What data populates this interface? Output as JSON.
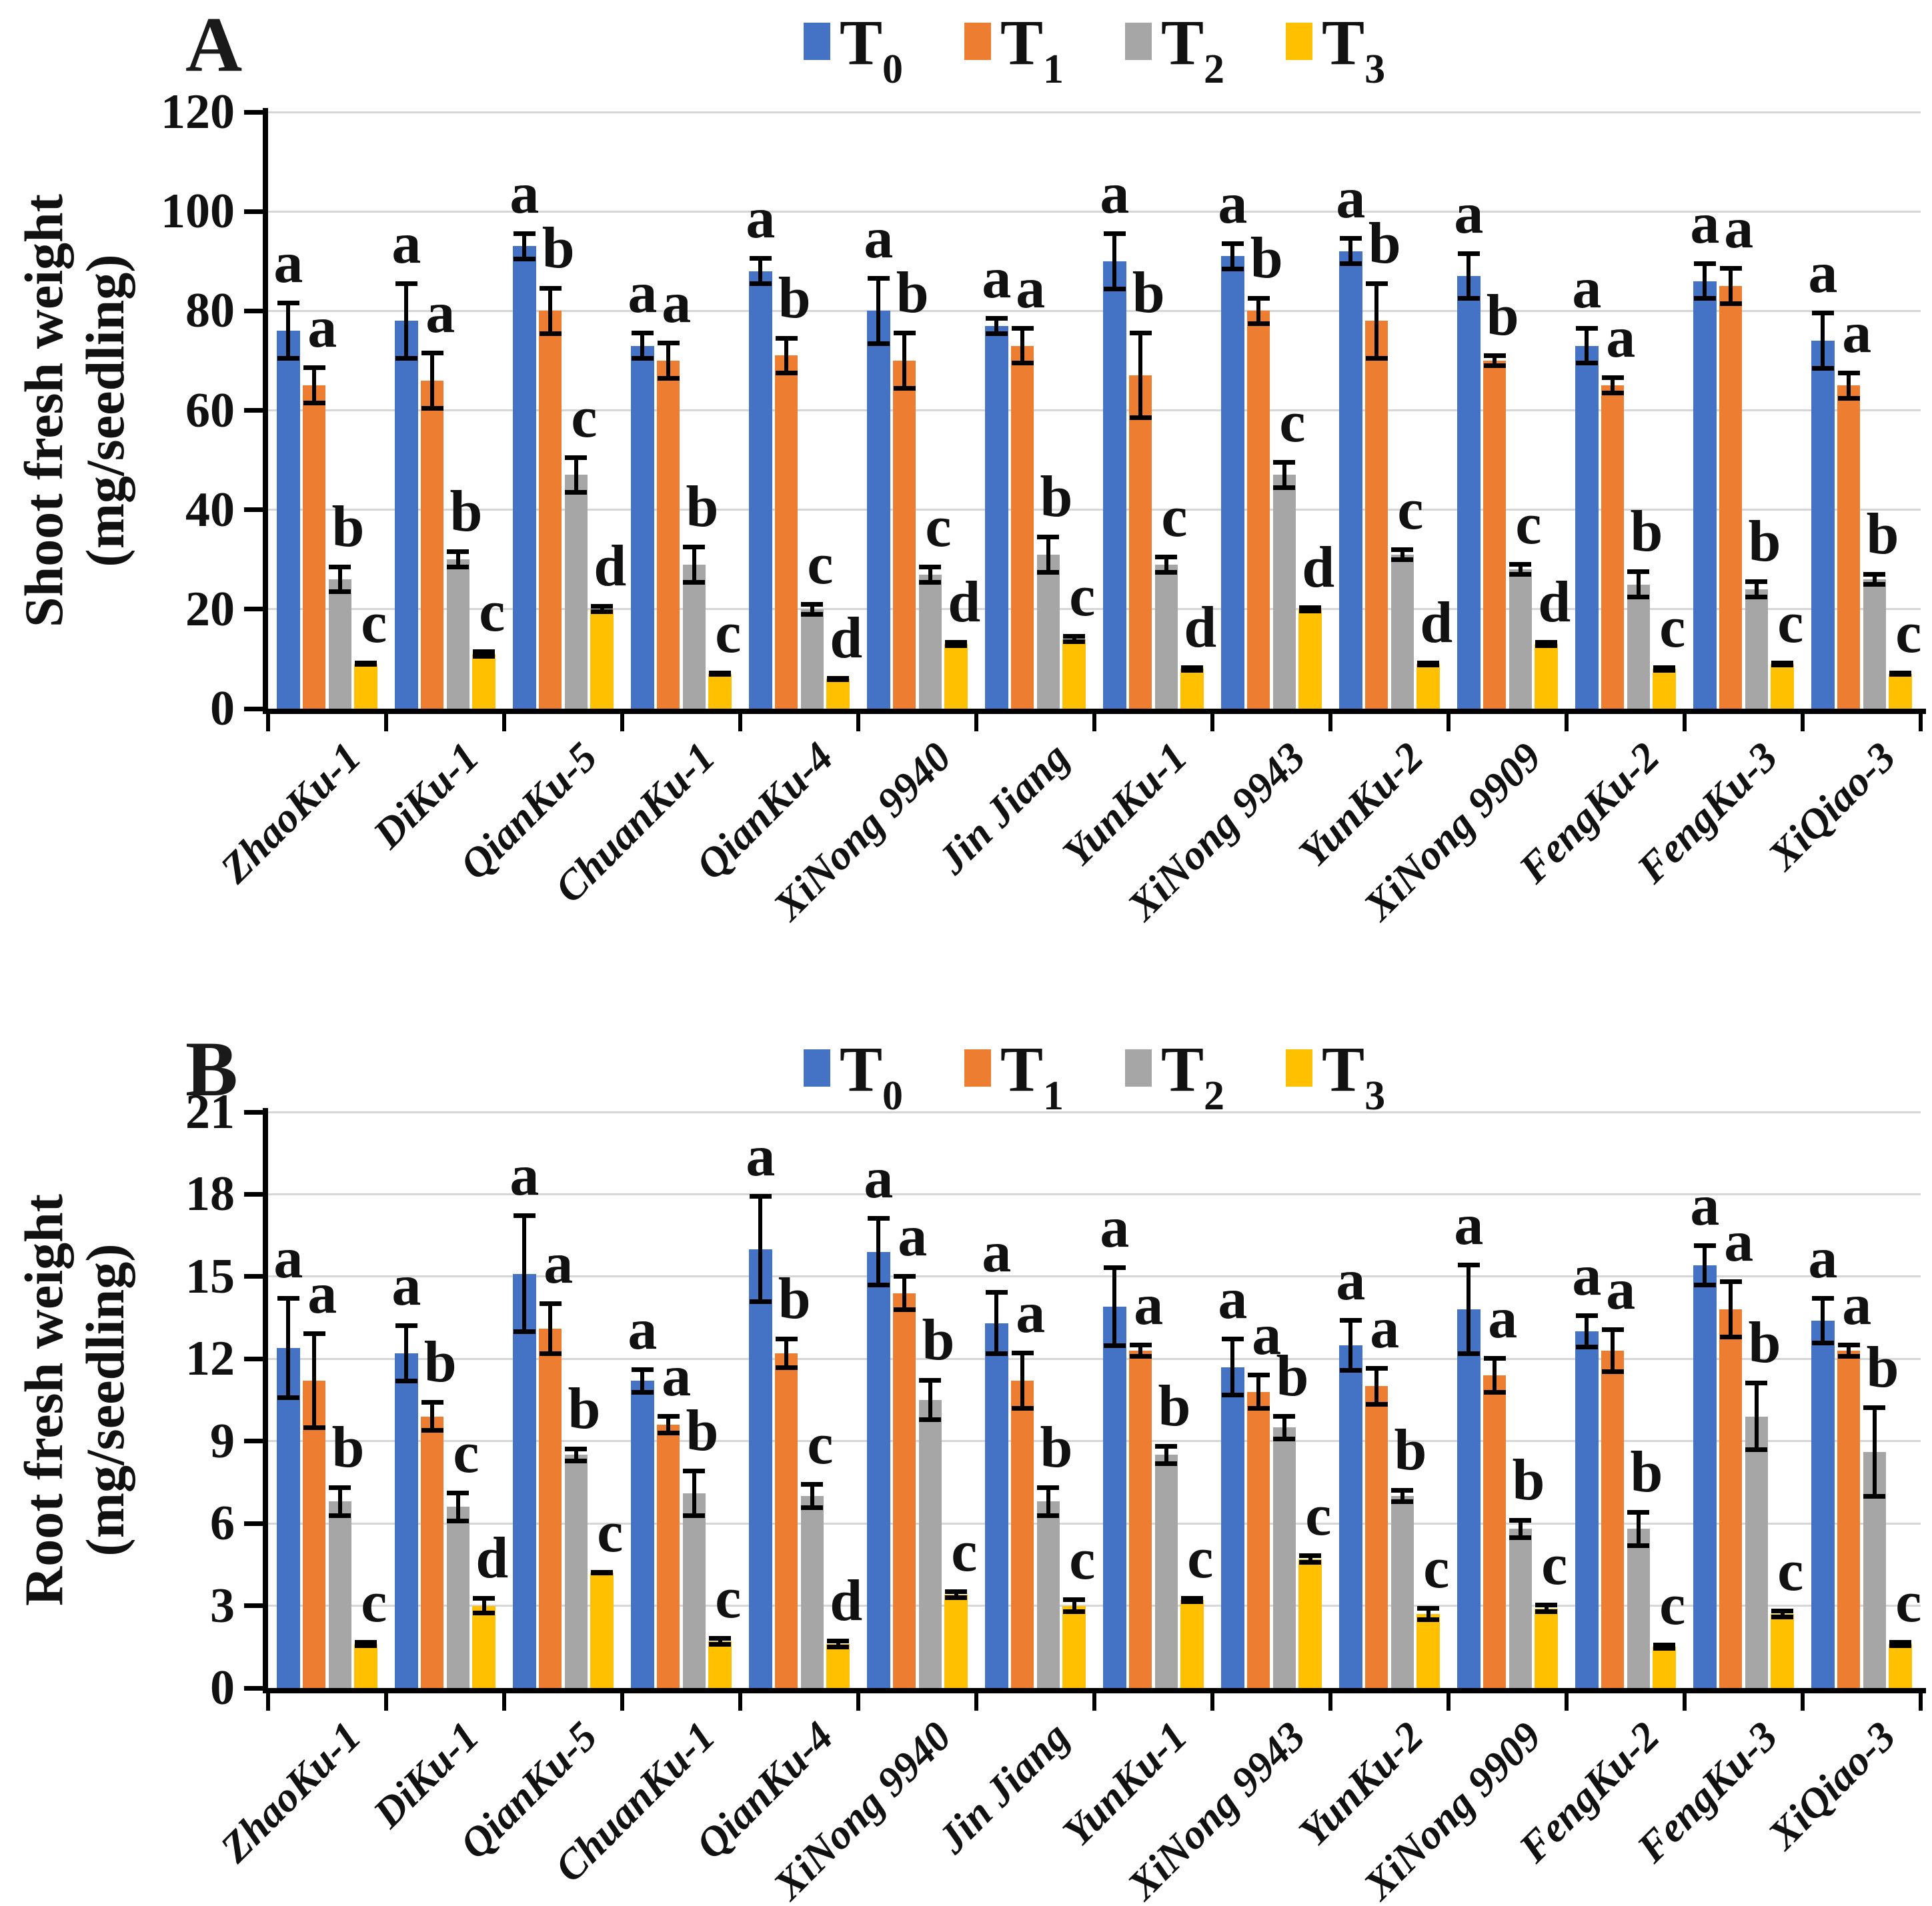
{
  "figure_title": "",
  "chart_data": [
    {
      "type": "bar",
      "panel_label": "A",
      "ylabel_line1": "Shoot fresh weight",
      "ylabel_line2": "(mg/seedling)",
      "xlabel": "",
      "ylim": [
        0,
        120
      ],
      "y_ticks": [
        0,
        20,
        40,
        60,
        80,
        100,
        120
      ],
      "grid": true,
      "legend_position": "top-center",
      "error_bars": true,
      "categories": [
        "ZhaoKu-1",
        "DiKu-1",
        "QianKu-5",
        "ChuanKu-1",
        "QianKu-4",
        "XiNong 9940",
        "Jin Jiang",
        "YunKu-1",
        "XiNong 9943",
        "YunKu-2",
        "XiNong 9909",
        "FengKu-2",
        "FengKu-3",
        "XiQiao-3"
      ],
      "legend": [
        {
          "name": "T",
          "sub": "0",
          "color": "#4472C4"
        },
        {
          "name": "T",
          "sub": "1",
          "color": "#ED7D31"
        },
        {
          "name": "T",
          "sub": "2",
          "color": "#A6A6A6"
        },
        {
          "name": "T",
          "sub": "3",
          "color": "#FFC000"
        }
      ],
      "series": [
        {
          "name": "T0",
          "color": "#4472C4",
          "values": [
            76,
            78,
            93,
            73,
            88,
            80,
            77,
            90,
            91,
            92,
            87,
            73,
            86,
            74
          ],
          "errors": [
            6,
            8,
            3,
            3,
            3,
            7,
            2,
            6,
            3,
            3,
            5,
            4,
            4,
            6
          ],
          "letters": [
            "a",
            "a",
            "a",
            "a",
            "a",
            "a",
            "a",
            "a",
            "a",
            "a",
            "a",
            "a",
            "a",
            "a"
          ]
        },
        {
          "name": "T1",
          "color": "#ED7D31",
          "values": [
            65,
            66,
            80,
            70,
            71,
            70,
            73,
            67,
            80,
            78,
            70,
            65,
            85,
            65
          ],
          "errors": [
            4,
            6,
            5,
            4,
            4,
            6,
            4,
            9,
            3,
            8,
            1.5,
            2,
            4,
            3
          ],
          "letters": [
            "a",
            "a",
            "b",
            "a",
            "b",
            "b",
            "a",
            "b",
            "b",
            "b",
            "b",
            "a",
            "a",
            "a"
          ]
        },
        {
          "name": "T2",
          "color": "#A6A6A6",
          "values": [
            26,
            30,
            47,
            29,
            20,
            27,
            31,
            29,
            47,
            31,
            28,
            25,
            24,
            26
          ],
          "errors": [
            3,
            2,
            4,
            4,
            1.5,
            2,
            4,
            2,
            3,
            1.5,
            1.5,
            3,
            2,
            1.5
          ],
          "letters": [
            "b",
            "b",
            "c",
            "b",
            "c",
            "c",
            "b",
            "c",
            "c",
            "c",
            "c",
            "b",
            "b",
            "b"
          ]
        },
        {
          "name": "T3",
          "color": "#FFC000",
          "values": [
            9,
            11,
            20,
            7,
            6,
            13,
            14,
            8,
            20,
            9,
            13,
            8,
            9,
            7
          ],
          "errors": [
            0.6,
            1,
            1,
            0.6,
            0.6,
            0.8,
            1,
            0.7,
            0.8,
            0.7,
            0.8,
            0.7,
            0.7,
            0.6
          ],
          "letters": [
            "c",
            "c",
            "d",
            "c",
            "d",
            "d",
            "c",
            "d",
            "d",
            "d",
            "d",
            "c",
            "c",
            "c"
          ]
        }
      ]
    },
    {
      "type": "bar",
      "panel_label": "B",
      "ylabel_line1": "Root fresh weight",
      "ylabel_line2": "(mg/seedling)",
      "xlabel": "",
      "ylim": [
        0,
        21
      ],
      "y_ticks": [
        0,
        3,
        6,
        9,
        12,
        15,
        18,
        21
      ],
      "grid": true,
      "legend_position": "top-center",
      "error_bars": true,
      "categories": [
        "ZhaoKu-1",
        "DiKu-1",
        "QianKu-5",
        "ChuanKu-1",
        "QianKu-4",
        "XiNong 9940",
        "Jin Jiang",
        "YunKu-1",
        "XiNong 9943",
        "YunKu-2",
        "XiNong 9909",
        "FengKu-2",
        "FengKu-3",
        "XiQiao-3"
      ],
      "legend": [
        {
          "name": "T",
          "sub": "0",
          "color": "#4472C4"
        },
        {
          "name": "T",
          "sub": "1",
          "color": "#ED7D31"
        },
        {
          "name": "T",
          "sub": "2",
          "color": "#A6A6A6"
        },
        {
          "name": "T",
          "sub": "3",
          "color": "#FFC000"
        }
      ],
      "series": [
        {
          "name": "T0",
          "color": "#4472C4",
          "values": [
            12.4,
            12.2,
            15.1,
            11.2,
            16.0,
            15.9,
            13.3,
            13.9,
            11.7,
            12.5,
            13.8,
            13.0,
            15.4,
            13.4
          ],
          "errors": [
            1.9,
            1.1,
            2.2,
            0.5,
            2.0,
            1.3,
            1.2,
            1.5,
            1.1,
            1.0,
            1.7,
            0.65,
            0.8,
            0.9
          ],
          "letters": [
            "a",
            "a",
            "a",
            "a",
            "a",
            "a",
            "a",
            "a",
            "a",
            "a",
            "a",
            "a",
            "a",
            "a"
          ]
        },
        {
          "name": "T1",
          "color": "#ED7D31",
          "values": [
            11.2,
            9.9,
            13.1,
            9.6,
            12.2,
            14.4,
            11.2,
            12.3,
            10.8,
            11.0,
            11.4,
            12.3,
            13.8,
            12.3
          ],
          "errors": [
            1.8,
            0.6,
            1.0,
            0.4,
            0.6,
            0.7,
            1.1,
            0.3,
            0.7,
            0.75,
            0.7,
            0.85,
            1.1,
            0.3
          ],
          "letters": [
            "a",
            "b",
            "a",
            "a",
            "b",
            "a",
            "a",
            "a",
            "a",
            "a",
            "a",
            "a",
            "a",
            "a"
          ]
        },
        {
          "name": "T2",
          "color": "#A6A6A6",
          "values": [
            6.8,
            6.6,
            8.5,
            7.1,
            7.0,
            10.5,
            6.8,
            8.5,
            9.5,
            7.0,
            5.8,
            5.8,
            9.9,
            8.6
          ],
          "errors": [
            0.6,
            0.6,
            0.3,
            0.9,
            0.5,
            0.8,
            0.6,
            0.4,
            0.5,
            0.3,
            0.4,
            0.7,
            1.3,
            1.7
          ],
          "letters": [
            "b",
            "c",
            "b",
            "b",
            "c",
            "b",
            "b",
            "b",
            "b",
            "b",
            "b",
            "b",
            "b",
            "b"
          ]
        },
        {
          "name": "T3",
          "color": "#FFC000",
          "values": [
            1.6,
            3.0,
            4.2,
            1.7,
            1.6,
            3.4,
            3.0,
            3.2,
            4.7,
            2.7,
            2.9,
            1.5,
            2.7,
            1.6
          ],
          "errors": [
            0.15,
            0.35,
            0.1,
            0.2,
            0.2,
            0.2,
            0.3,
            0.15,
            0.2,
            0.3,
            0.2,
            0.15,
            0.2,
            0.15
          ],
          "letters": [
            "c",
            "d",
            "c",
            "c",
            "d",
            "c",
            "c",
            "c",
            "c",
            "c",
            "c",
            "c",
            "c",
            "c"
          ]
        }
      ]
    }
  ]
}
